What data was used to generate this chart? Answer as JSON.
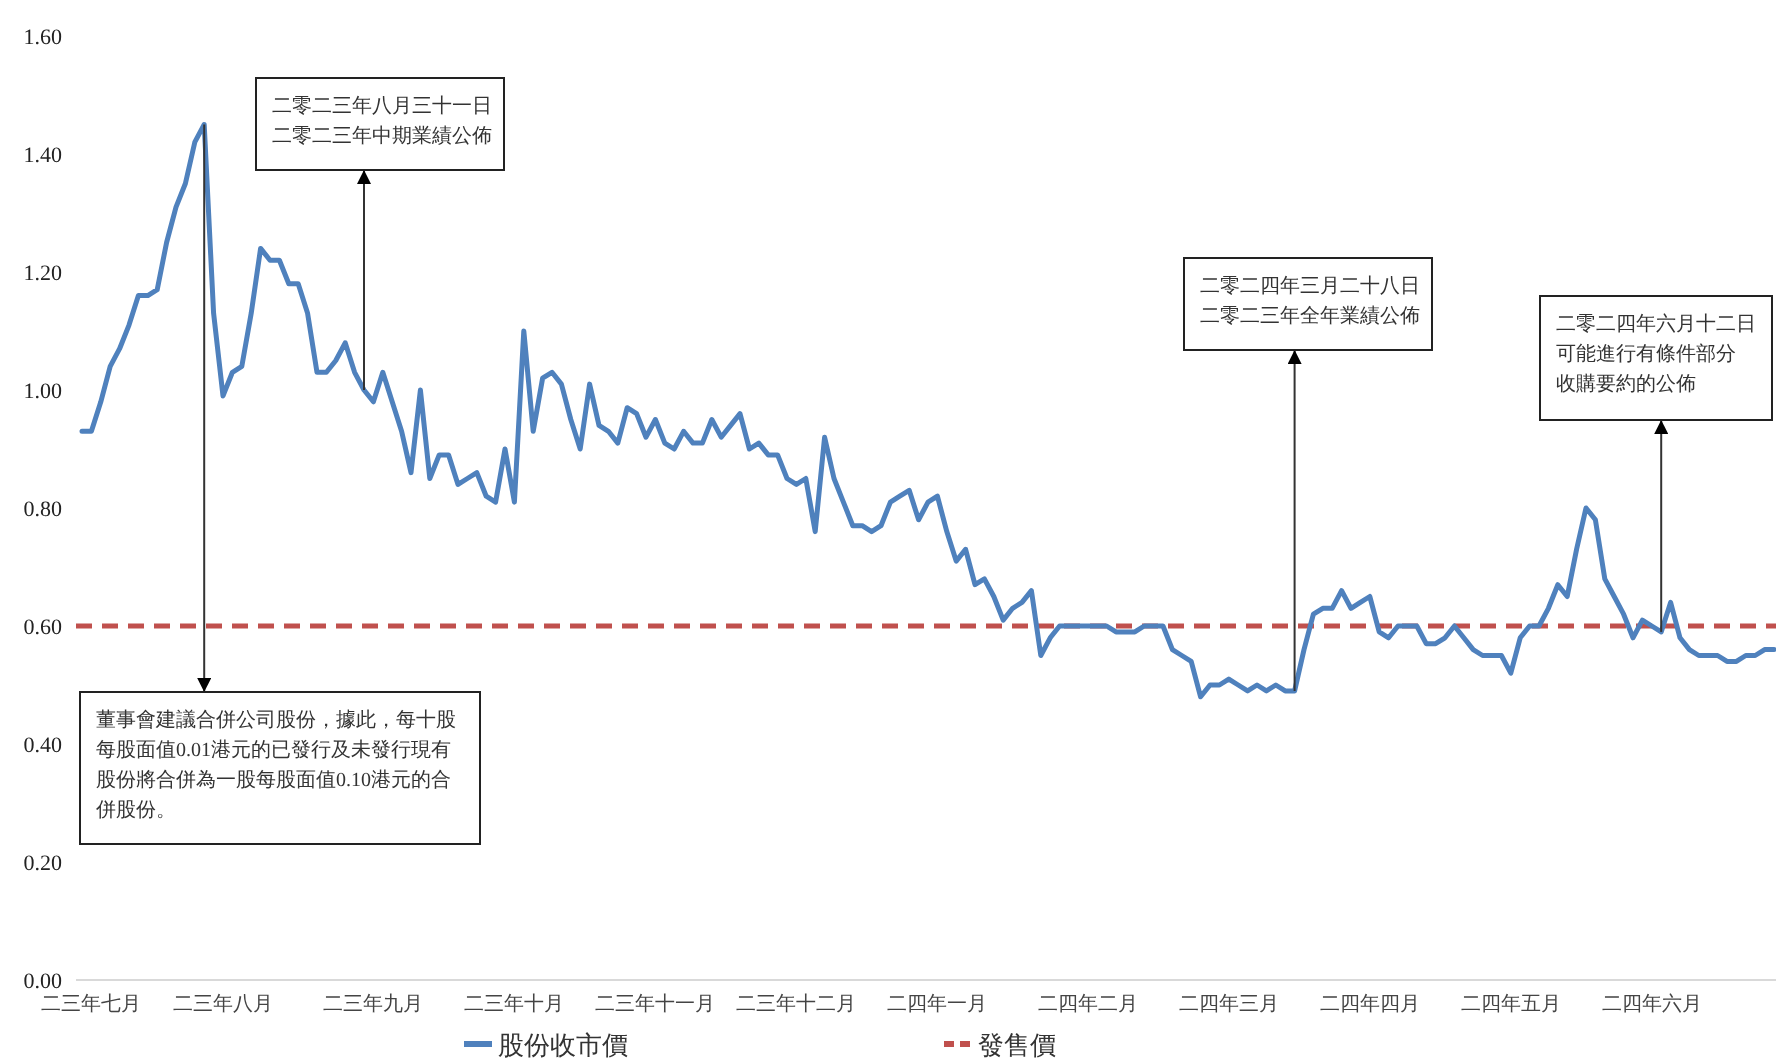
{
  "chart_data": {
    "type": "line",
    "legend": "bottom",
    "line_style": "solid",
    "ylim": [
      0,
      1.6
    ],
    "yticks": [
      {
        "value": 0,
        "label": "0.00"
      },
      {
        "value": 0.2,
        "label": "0.20"
      },
      {
        "value": 0.4,
        "label": "0.40"
      },
      {
        "value": 0.6,
        "label": "0.60"
      },
      {
        "value": 0.8,
        "label": "0.80"
      },
      {
        "value": 1.0,
        "label": "1.00"
      },
      {
        "value": 1.2,
        "label": "1.20"
      },
      {
        "value": 1.4,
        "label": "1.40"
      },
      {
        "value": 1.6,
        "label": "1.60"
      }
    ],
    "categories": [
      null,
      "二三年七月",
      null,
      null,
      null,
      null,
      null,
      null,
      null,
      null,
      null,
      null,
      null,
      null,
      null,
      "二三年八月",
      null,
      null,
      null,
      null,
      null,
      null,
      null,
      null,
      null,
      null,
      null,
      null,
      null,
      null,
      null,
      "二三年九月",
      null,
      null,
      null,
      null,
      null,
      null,
      null,
      null,
      null,
      null,
      null,
      null,
      null,
      null,
      "二三年十月",
      null,
      null,
      null,
      null,
      null,
      null,
      null,
      null,
      null,
      null,
      null,
      null,
      null,
      null,
      "二三年十一月",
      null,
      null,
      null,
      null,
      null,
      null,
      null,
      null,
      null,
      null,
      null,
      null,
      null,
      null,
      "二三年十二月",
      null,
      null,
      null,
      null,
      null,
      null,
      null,
      null,
      null,
      null,
      null,
      null,
      null,
      null,
      "二四年一月",
      null,
      null,
      null,
      null,
      null,
      null,
      null,
      null,
      null,
      null,
      null,
      null,
      null,
      null,
      null,
      "二四年二月",
      null,
      null,
      null,
      null,
      null,
      null,
      null,
      null,
      null,
      null,
      null,
      null,
      null,
      null,
      "二四年三月",
      null,
      null,
      null,
      null,
      null,
      null,
      null,
      null,
      null,
      null,
      null,
      null,
      null,
      null,
      "二四年四月",
      null,
      null,
      null,
      null,
      null,
      null,
      null,
      null,
      null,
      null,
      null,
      null,
      null,
      null,
      "二四年五月",
      null,
      null,
      null,
      null,
      null,
      null,
      null,
      null,
      null,
      null,
      null,
      null,
      null,
      null,
      "二四年六月",
      null,
      null,
      null,
      null,
      null,
      null,
      null,
      null,
      null,
      null,
      null,
      null,
      null
    ],
    "series": [
      {
        "name": "股份收市價",
        "color": "#4f81bd",
        "values": [
          0.93,
          0.93,
          0.98,
          1.04,
          1.07,
          1.11,
          1.16,
          1.16,
          1.17,
          1.25,
          1.31,
          1.35,
          1.42,
          1.45,
          1.13,
          0.99,
          1.03,
          1.04,
          1.13,
          1.24,
          1.22,
          1.22,
          1.18,
          1.18,
          1.13,
          1.03,
          1.03,
          1.05,
          1.08,
          1.03,
          1.0,
          0.98,
          1.03,
          0.98,
          0.93,
          0.86,
          1.0,
          0.85,
          0.89,
          0.89,
          0.84,
          0.85,
          0.86,
          0.82,
          0.81,
          0.9,
          0.81,
          1.1,
          0.93,
          1.02,
          1.03,
          1.01,
          0.95,
          0.9,
          1.01,
          0.94,
          0.93,
          0.91,
          0.97,
          0.96,
          0.92,
          0.95,
          0.91,
          0.9,
          0.93,
          0.91,
          0.91,
          0.95,
          0.92,
          0.94,
          0.96,
          0.9,
          0.91,
          0.89,
          0.89,
          0.85,
          0.84,
          0.85,
          0.76,
          0.92,
          0.85,
          0.81,
          0.77,
          0.77,
          0.76,
          0.77,
          0.81,
          0.82,
          0.83,
          0.78,
          0.81,
          0.82,
          0.76,
          0.71,
          0.73,
          0.67,
          0.68,
          0.65,
          0.61,
          0.63,
          0.64,
          0.66,
          0.55,
          0.58,
          0.6,
          0.6,
          0.6,
          0.6,
          0.6,
          0.6,
          0.59,
          0.59,
          0.59,
          0.6,
          0.6,
          0.6,
          0.56,
          0.55,
          0.54,
          0.48,
          0.5,
          0.5,
          0.51,
          0.5,
          0.49,
          0.5,
          0.49,
          0.5,
          0.49,
          0.49,
          0.56,
          0.62,
          0.63,
          0.63,
          0.66,
          0.63,
          0.64,
          0.65,
          0.59,
          0.58,
          0.6,
          0.6,
          0.6,
          0.57,
          0.57,
          0.58,
          0.6,
          0.58,
          0.56,
          0.55,
          0.55,
          0.55,
          0.52,
          0.58,
          0.6,
          0.6,
          0.63,
          0.67,
          0.65,
          0.73,
          0.8,
          0.78,
          0.68,
          0.65,
          0.62,
          0.58,
          0.61,
          0.6,
          0.59,
          0.64,
          0.58,
          0.56,
          0.55,
          0.55,
          0.55,
          0.54,
          0.54,
          0.55,
          0.55,
          0.56,
          0.56
        ]
      }
    ],
    "ref_lines": [
      {
        "axis": "y",
        "value": 0.6,
        "label": "發售價",
        "color": "#c0504d",
        "line_style": "dashed"
      }
    ],
    "annotations": [
      "董事會建議合併公司股份，據此，每十股每股面值0.01港元的已發行及未發行現有股份將合併為一股每股面值0.10港元的合併股份。",
      "二零二三年八月三十一日二零二三年中期業績公佈",
      "二零二四年三月二十八日二零二三年全年業績公佈",
      "二零二四年六月十二日可能進行有條件部分收購要約的公佈"
    ]
  }
}
